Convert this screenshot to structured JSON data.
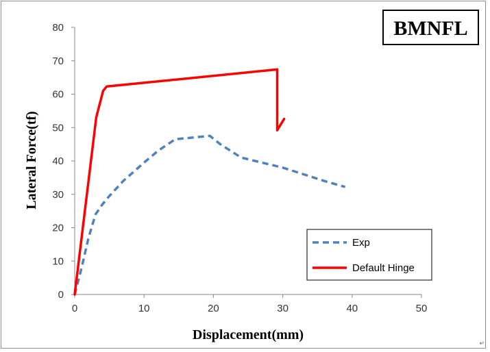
{
  "chart_data": {
    "type": "line",
    "title": "BMNFL",
    "xlabel": "Displacement(mm)",
    "ylabel": "Lateral Force(tf)",
    "xlim": [
      0,
      50
    ],
    "ylim": [
      0,
      80
    ],
    "xticks": [
      0,
      10,
      20,
      30,
      40,
      50
    ],
    "yticks": [
      0,
      10,
      20,
      30,
      40,
      50,
      60,
      70,
      80
    ],
    "grid": false,
    "legend_position": "bottom-right",
    "series": [
      {
        "name": "Exp",
        "color": "#4f81bd",
        "style": "dashed",
        "x": [
          0,
          1,
          2,
          3,
          4,
          5,
          7,
          10,
          12,
          14.5,
          17,
          19.5,
          21,
          24,
          27,
          30,
          33,
          36,
          39
        ],
        "y": [
          0,
          8,
          17,
          24,
          27,
          29.5,
          34,
          39.5,
          43,
          46.5,
          47,
          47.5,
          45,
          41,
          39.5,
          38,
          36,
          34,
          32.2
        ]
      },
      {
        "name": "Default Hinge",
        "color": "#ff0000",
        "style": "solid",
        "x": [
          0,
          3.1,
          4.1,
          4.6,
          29.2,
          29.2,
          30.2
        ],
        "y": [
          0,
          53,
          61,
          62.3,
          67.4,
          49.2,
          52.6
        ]
      }
    ]
  },
  "corner_mark": "↵"
}
